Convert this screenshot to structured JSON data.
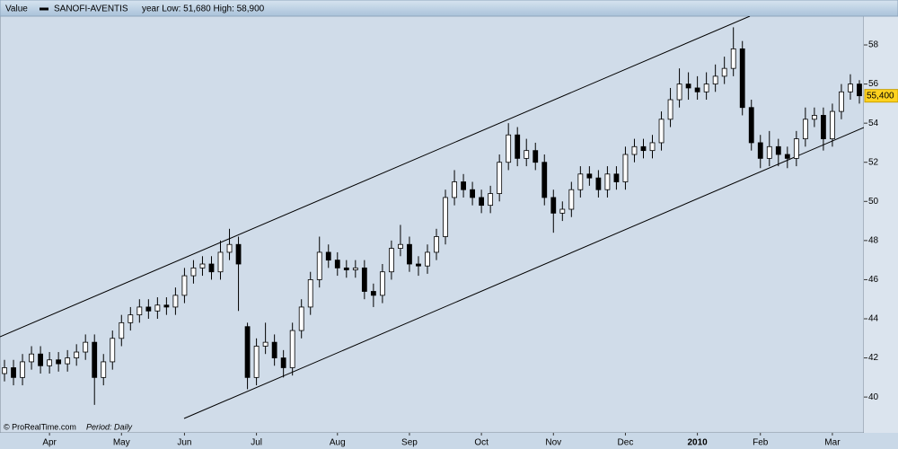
{
  "chart_data": {
    "type": "candlestick",
    "title": "Value",
    "series_name": "SANOFI-AVENTIS",
    "range_text": "year Low: 51,680 High: 58,900",
    "source": "© ProRealTime.com",
    "period_label": "Period: Daily",
    "last_price": {
      "value": 55.4,
      "label": "55,400"
    },
    "ylim": [
      38.17,
      59.47
    ],
    "yticks": [
      40,
      42,
      44,
      46,
      48,
      50,
      52,
      54,
      56,
      58
    ],
    "categories": [
      null,
      null,
      null,
      null,
      null,
      "Apr",
      null,
      null,
      null,
      null,
      null,
      null,
      null,
      "May",
      null,
      null,
      null,
      null,
      null,
      null,
      "Jun",
      null,
      null,
      null,
      null,
      null,
      null,
      null,
      "Jul",
      null,
      null,
      null,
      null,
      null,
      null,
      null,
      null,
      "Aug",
      null,
      null,
      null,
      null,
      null,
      null,
      null,
      "Sep",
      null,
      null,
      null,
      null,
      null,
      null,
      null,
      "Oct",
      null,
      null,
      null,
      null,
      null,
      null,
      null,
      "Nov",
      null,
      null,
      null,
      null,
      null,
      null,
      null,
      "Dec",
      null,
      null,
      null,
      null,
      null,
      null,
      null,
      "2010",
      null,
      null,
      null,
      null,
      null,
      null,
      "Feb",
      null,
      null,
      null,
      null,
      null,
      null,
      null,
      "Mar",
      null,
      null,
      null
    ],
    "open": [
      41.2,
      41.5,
      41.0,
      41.8,
      42.2,
      41.6,
      41.9,
      41.7,
      42.0,
      42.3,
      42.8,
      41.0,
      41.8,
      43.0,
      43.8,
      44.2,
      44.6,
      44.4,
      44.7,
      44.6,
      45.2,
      46.2,
      46.6,
      46.8,
      46.4,
      47.4,
      47.8,
      43.6,
      41.0,
      42.6,
      42.8,
      42.0,
      41.5,
      43.4,
      44.6,
      46.0,
      47.4,
      47.0,
      46.6,
      46.5,
      46.6,
      45.4,
      45.2,
      46.4,
      47.6,
      47.8,
      46.8,
      46.7,
      47.4,
      48.2,
      50.2,
      51.0,
      50.6,
      50.2,
      49.8,
      50.4,
      52.0,
      53.4,
      52.2,
      52.6,
      52.0,
      50.2,
      49.4,
      49.6,
      50.6,
      51.4,
      51.2,
      50.6,
      51.4,
      51.0,
      52.4,
      52.8,
      52.6,
      53.0,
      54.2,
      55.2,
      56.0,
      55.8,
      55.6,
      56.0,
      56.4,
      56.8,
      57.8,
      54.8,
      53.0,
      52.2,
      52.8,
      52.4,
      52.2,
      53.2,
      54.2,
      54.4,
      53.2,
      54.6,
      55.6,
      56.0
    ],
    "high": [
      41.9,
      41.9,
      42.2,
      42.6,
      42.6,
      42.3,
      42.3,
      42.4,
      42.7,
      43.2,
      43.2,
      42.2,
      43.4,
      44.2,
      44.6,
      45.0,
      45.0,
      45.1,
      45.1,
      45.6,
      46.6,
      47.0,
      47.2,
      47.2,
      48.0,
      48.6,
      48.2,
      43.8,
      43.0,
      43.8,
      43.2,
      42.4,
      43.8,
      45.0,
      46.4,
      48.2,
      47.8,
      47.4,
      47.0,
      47.0,
      47.0,
      45.8,
      46.8,
      48.0,
      48.8,
      48.2,
      47.2,
      47.8,
      48.6,
      50.6,
      51.6,
      51.4,
      51.0,
      50.6,
      50.8,
      52.4,
      54.0,
      53.8,
      53.2,
      53.0,
      52.4,
      50.6,
      50.0,
      51.0,
      51.8,
      51.8,
      51.6,
      51.8,
      51.8,
      52.8,
      53.2,
      53.2,
      53.4,
      54.6,
      55.8,
      56.8,
      56.6,
      56.4,
      56.6,
      57.0,
      57.4,
      58.9,
      58.2,
      55.2,
      53.4,
      53.6,
      53.2,
      52.8,
      53.6,
      54.8,
      54.8,
      54.8,
      55.0,
      56.0,
      56.5,
      56.2
    ],
    "low": [
      40.8,
      40.6,
      40.6,
      41.4,
      41.2,
      41.2,
      41.3,
      41.3,
      41.6,
      41.9,
      39.6,
      40.6,
      41.4,
      42.6,
      43.4,
      43.8,
      44.0,
      44.0,
      44.2,
      44.2,
      44.8,
      45.8,
      46.2,
      46.0,
      46.0,
      47.0,
      44.4,
      40.4,
      40.6,
      42.2,
      41.6,
      41.0,
      41.1,
      43.0,
      44.2,
      45.6,
      46.6,
      46.2,
      46.1,
      46.1,
      45.0,
      44.6,
      44.8,
      46.0,
      47.2,
      46.4,
      46.2,
      46.3,
      47.0,
      47.8,
      49.8,
      50.2,
      49.8,
      49.4,
      49.4,
      50.0,
      51.6,
      51.8,
      51.8,
      51.6,
      49.8,
      48.4,
      49.0,
      49.2,
      50.2,
      50.8,
      50.2,
      50.2,
      50.6,
      50.6,
      52.0,
      52.2,
      52.2,
      52.6,
      53.8,
      54.8,
      55.2,
      55.2,
      55.2,
      55.6,
      56.0,
      56.4,
      54.4,
      52.6,
      51.7,
      51.8,
      51.8,
      51.7,
      51.8,
      52.8,
      53.8,
      52.6,
      52.8,
      54.2,
      55.2,
      55.0
    ],
    "close": [
      41.5,
      41.0,
      41.8,
      42.2,
      41.6,
      41.9,
      41.7,
      42.0,
      42.3,
      42.8,
      41.0,
      41.8,
      43.0,
      43.8,
      44.2,
      44.6,
      44.4,
      44.7,
      44.6,
      45.2,
      46.2,
      46.6,
      46.8,
      46.4,
      47.4,
      47.8,
      46.8,
      41.0,
      42.6,
      42.8,
      42.0,
      41.5,
      43.4,
      44.6,
      46.0,
      47.4,
      47.0,
      46.6,
      46.5,
      46.6,
      45.4,
      45.2,
      46.4,
      47.6,
      47.8,
      46.8,
      46.7,
      47.4,
      48.2,
      50.2,
      51.0,
      50.6,
      50.2,
      49.8,
      50.4,
      52.0,
      53.4,
      52.2,
      52.6,
      52.0,
      50.2,
      49.4,
      49.6,
      50.6,
      51.4,
      51.2,
      50.6,
      51.4,
      51.0,
      52.4,
      52.8,
      52.6,
      53.0,
      54.2,
      55.2,
      56.0,
      55.8,
      55.6,
      56.0,
      56.4,
      56.8,
      57.8,
      54.8,
      53.0,
      52.2,
      52.8,
      52.4,
      52.2,
      53.2,
      54.2,
      54.4,
      53.2,
      54.6,
      55.6,
      56.0,
      55.4
    ],
    "up_color": "#ffffff",
    "down_color": "#000000",
    "plot_background": "#d0dce9"
  }
}
